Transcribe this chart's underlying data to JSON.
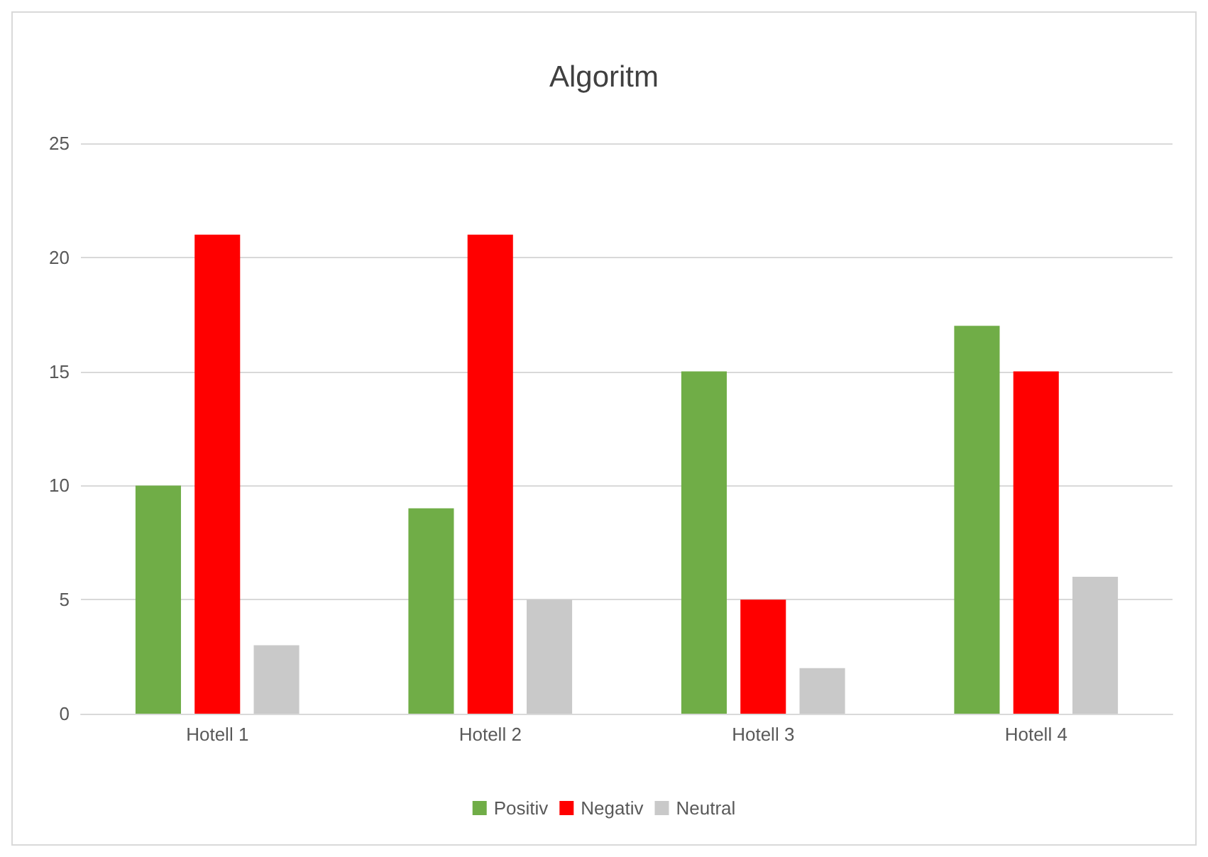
{
  "chart_data": {
    "type": "bar",
    "title": "Algoritm",
    "categories": [
      "Hotell 1",
      "Hotell 2",
      "Hotell 3",
      "Hotell 4"
    ],
    "series": [
      {
        "name": "Positiv",
        "color": "#70ad47",
        "values": [
          10,
          9,
          15,
          17
        ]
      },
      {
        "name": "Negativ",
        "color": "#ff0000",
        "values": [
          21,
          21,
          5,
          15
        ]
      },
      {
        "name": "Neutral",
        "color": "#c9c9c9",
        "values": [
          3,
          5,
          2,
          6
        ]
      }
    ],
    "ylim": [
      0,
      25
    ],
    "yticks": [
      0,
      5,
      10,
      15,
      20,
      25
    ],
    "grid": "y",
    "legend": "bottom"
  }
}
